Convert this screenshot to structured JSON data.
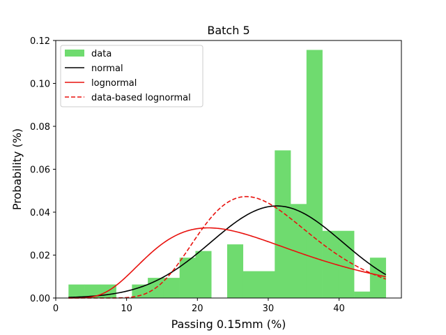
{
  "chart_data": {
    "type": "bar",
    "title": "Batch 5",
    "xlabel": "Passing 0.15mm (%)",
    "ylabel": "Probability (%)",
    "xlim": [
      0,
      48.8
    ],
    "ylim": [
      0,
      0.12
    ],
    "xticks": [
      0,
      10,
      20,
      30,
      40
    ],
    "yticks": [
      0.0,
      0.02,
      0.04,
      0.06,
      0.08,
      0.1,
      0.12
    ],
    "ytick_labels": [
      "0.00",
      "0.02",
      "0.04",
      "0.06",
      "0.08",
      "0.10",
      "0.12"
    ],
    "grid": false,
    "legend_position": "top-left",
    "histogram": {
      "name": "data",
      "color": "#6fdb6f",
      "bins": [
        {
          "x0": 1.8,
          "x1": 4.04,
          "value": 0.0063
        },
        {
          "x0": 4.04,
          "x1": 6.28,
          "value": 0.0063
        },
        {
          "x0": 6.28,
          "x1": 8.52,
          "value": 0.0063
        },
        {
          "x0": 8.52,
          "x1": 10.76,
          "value": 0.0
        },
        {
          "x0": 10.76,
          "x1": 13.0,
          "value": 0.0063
        },
        {
          "x0": 13.0,
          "x1": 15.24,
          "value": 0.0094
        },
        {
          "x0": 15.24,
          "x1": 17.48,
          "value": 0.0094
        },
        {
          "x0": 17.48,
          "x1": 19.72,
          "value": 0.0188
        },
        {
          "x0": 19.72,
          "x1": 21.96,
          "value": 0.0219
        },
        {
          "x0": 21.96,
          "x1": 24.2,
          "value": 0.0
        },
        {
          "x0": 24.2,
          "x1": 26.44,
          "value": 0.025
        },
        {
          "x0": 26.44,
          "x1": 28.68,
          "value": 0.0125
        },
        {
          "x0": 28.68,
          "x1": 30.92,
          "value": 0.0125
        },
        {
          "x0": 30.92,
          "x1": 33.16,
          "value": 0.0688
        },
        {
          "x0": 33.16,
          "x1": 35.4,
          "value": 0.0438
        },
        {
          "x0": 35.4,
          "x1": 37.64,
          "value": 0.1156
        },
        {
          "x0": 37.64,
          "x1": 39.88,
          "value": 0.0313
        },
        {
          "x0": 39.88,
          "x1": 42.12,
          "value": 0.0313
        },
        {
          "x0": 42.12,
          "x1": 44.36,
          "value": 0.003
        },
        {
          "x0": 44.36,
          "x1": 46.6,
          "value": 0.0188
        }
      ]
    },
    "series": [
      {
        "name": "normal",
        "color": "#000000",
        "style": "solid",
        "distribution": "normal",
        "mean": 31.2,
        "std": 9.3,
        "x_range": [
          1.8,
          46.6
        ]
      },
      {
        "name": "lognormal",
        "color": "#e8110d",
        "style": "solid",
        "distribution": "lognormal",
        "mu": 3.32,
        "sigma": 0.5,
        "x_range": [
          1.8,
          46.6
        ]
      },
      {
        "name": "data-based lognormal",
        "color": "#e8110d",
        "style": "dashed",
        "distribution": "lognormal",
        "mu": 3.382,
        "sigma": 0.3,
        "x_range": [
          1.8,
          46.6
        ]
      }
    ]
  }
}
